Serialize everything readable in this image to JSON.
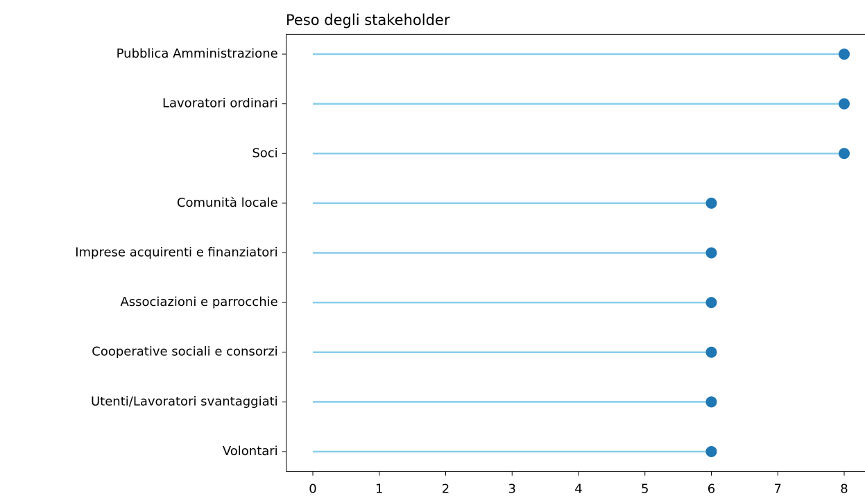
{
  "chart_data": {
    "type": "lollipop",
    "orientation": "horizontal",
    "title": "Peso degli stakeholder",
    "categories": [
      "Pubblica Amministrazione",
      "Lavoratori ordinari",
      "Soci",
      "Comunità locale",
      "Imprese acquirenti e finanziatori",
      "Associazioni e parrocchie",
      "Cooperative sociali e consorzi",
      "Utenti/Lavoratori svantaggiati",
      "Volontari"
    ],
    "values": [
      8,
      8,
      8,
      6,
      6,
      6,
      6,
      6,
      6
    ],
    "line_color": "#87ceeb",
    "color": "#1f77b4",
    "xlim": [
      -0.4,
      8.4
    ],
    "xticks": [
      0,
      1,
      2,
      3,
      4,
      5,
      6,
      7,
      8
    ],
    "grid": false
  }
}
